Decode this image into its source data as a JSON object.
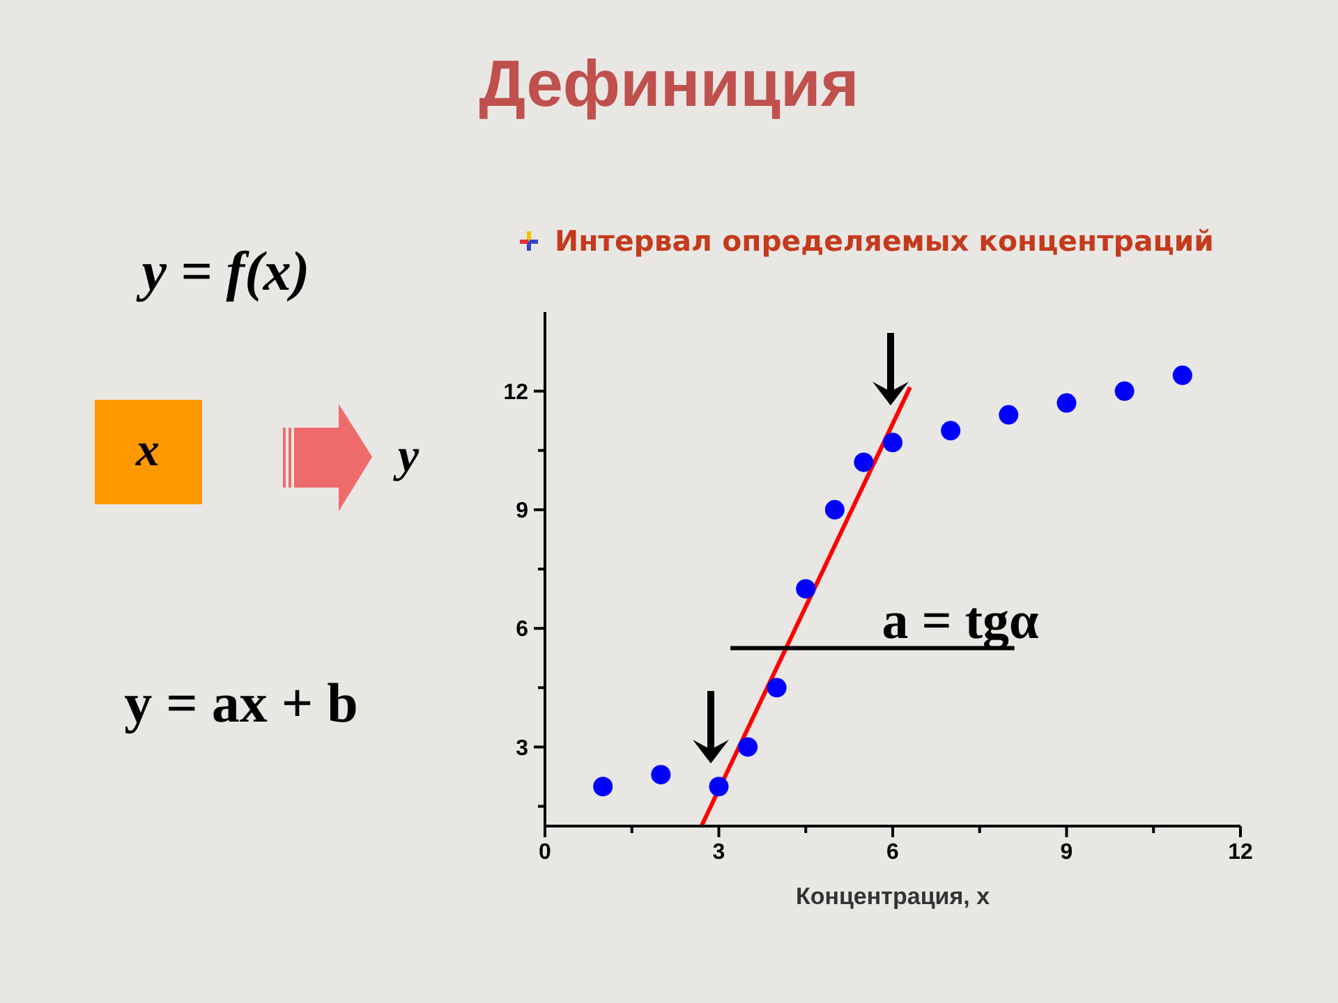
{
  "chart_data": {
    "type": "scatter",
    "title": "Дефиниция",
    "subtitle": "Интервал определяемых концентраций",
    "xlabel": "Концентрация, x",
    "x": [
      1,
      2,
      3,
      3.5,
      4,
      4.5,
      5,
      5.5,
      6,
      7,
      8,
      9,
      10,
      11
    ],
    "series": [
      {
        "color": "#0000ff",
        "values": [
          2,
          2.3,
          2,
          3,
          4.5,
          7,
          9,
          10.2,
          10.7,
          11,
          11.4,
          11.7,
          12,
          12.4
        ]
      },
      {
        "type": "line",
        "color": "#ff0000",
        "marker": "none",
        "x": [
          2.7,
          6.3
        ],
        "values": [
          1,
          12.1
        ]
      },
      {
        "type": "line",
        "color": "#000000",
        "marker": "none",
        "x": [
          3.2,
          8.1
        ],
        "values": [
          5.5,
          5.5
        ]
      }
    ],
    "xlim": [
      0,
      12
    ],
    "ylim": [
      1,
      14
    ],
    "xticks": [
      0,
      {
        "value": 1.5,
        "label": null
      },
      3,
      {
        "value": 4.5,
        "label": null
      },
      6,
      {
        "value": 7.5,
        "label": null
      },
      9,
      {
        "value": 10.5,
        "label": null
      },
      12
    ],
    "yticks": [
      {
        "value": 1.5,
        "label": null
      },
      3,
      {
        "value": 4.5,
        "label": null
      },
      6,
      {
        "value": 7.5,
        "label": null
      },
      9,
      {
        "value": 10.5,
        "label": null
      },
      12
    ],
    "marker": "circle",
    "annotations": [
      "y = f(x)",
      "x",
      "y",
      "y = ax + b",
      "a = tgα"
    ]
  }
}
